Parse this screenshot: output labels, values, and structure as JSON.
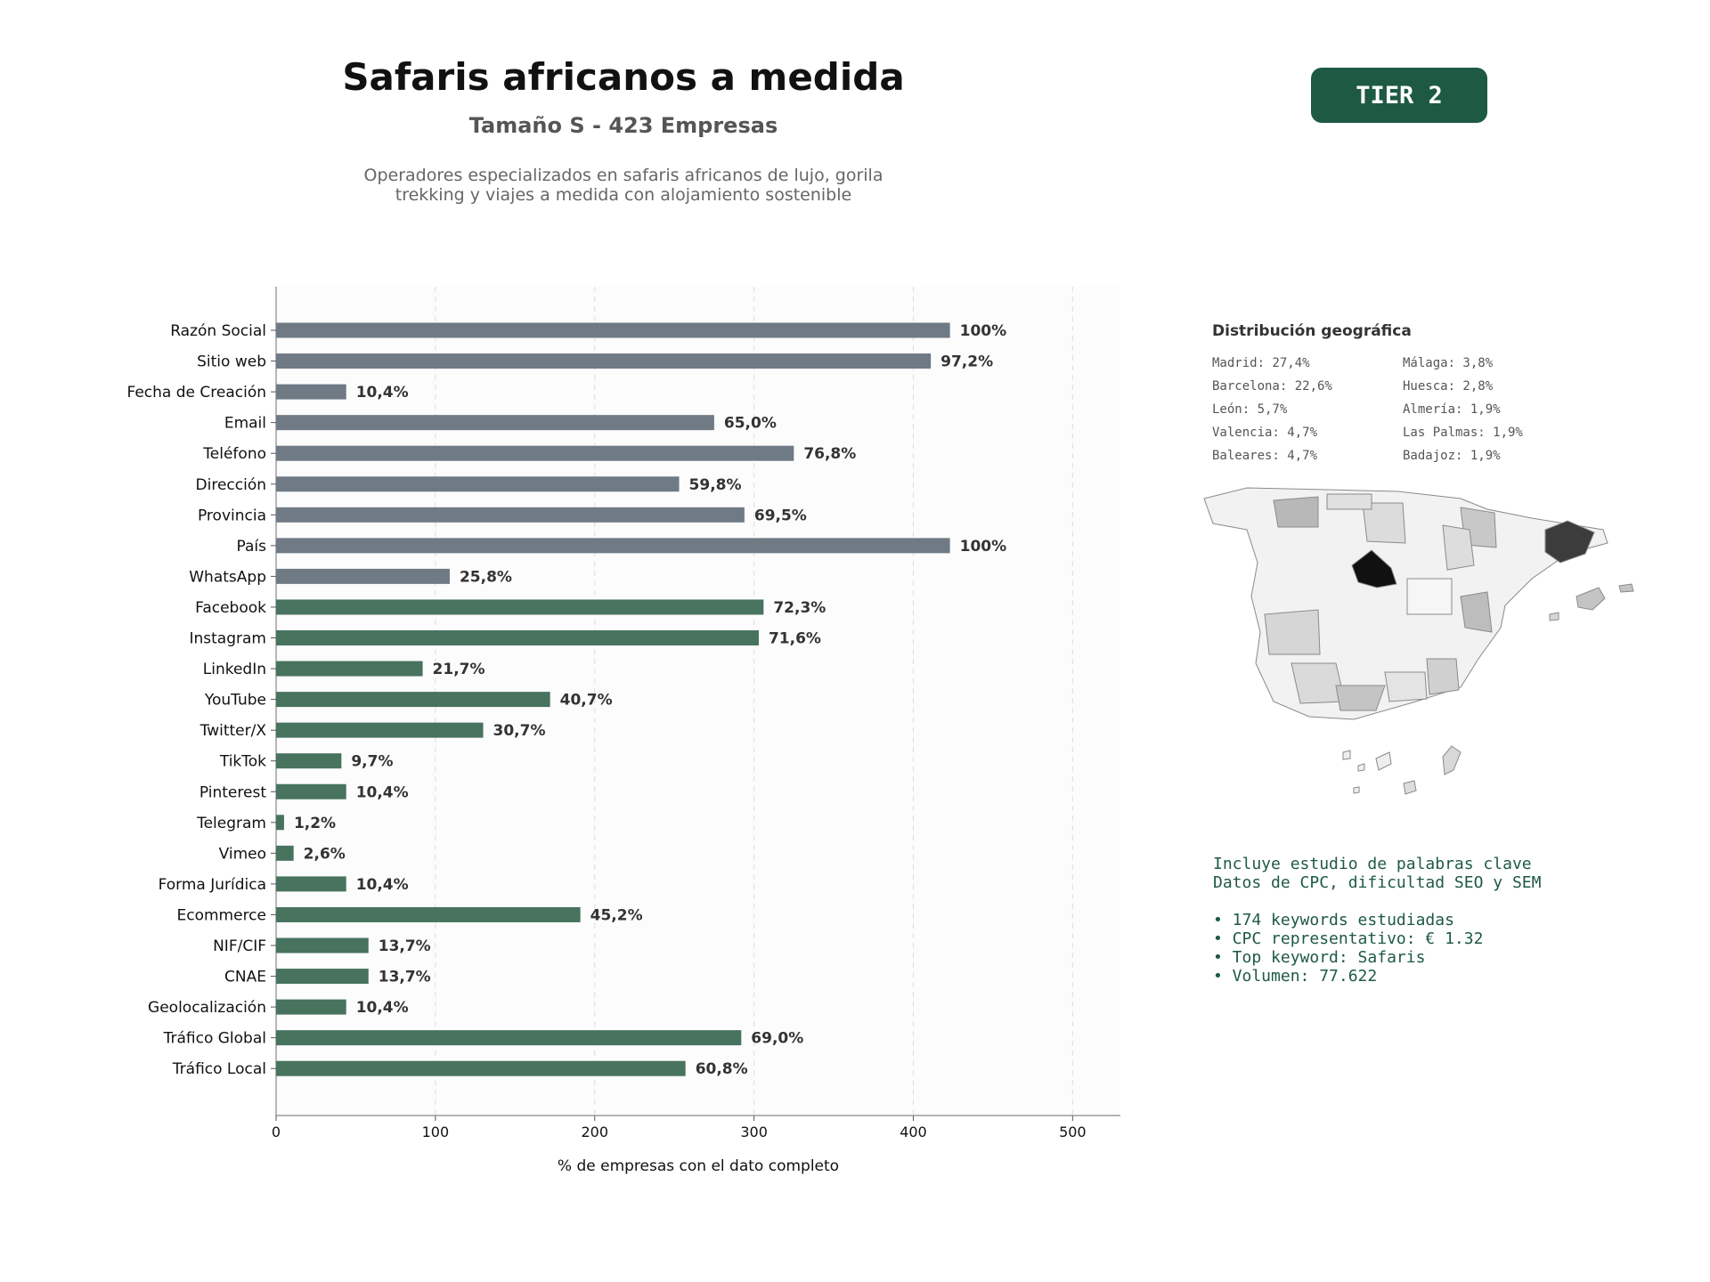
{
  "header": {
    "title": "Safaris africanos a medida",
    "subtitle": "Tamaño S - 423 Empresas",
    "description_line1": "Operadores especializados en safaris africanos de lujo, gorila",
    "description_line2": "trekking y viajes a medida con alojamiento sostenible",
    "tier_label": "TIER 2"
  },
  "colors": {
    "basic_bar": "#6f7a85",
    "social_bar": "#47735f",
    "tier_bg": "#1e5a43",
    "keyword_text": "#1e5a43"
  },
  "chart_data": {
    "type": "bar",
    "orientation": "horizontal",
    "xlabel": "% de empresas con el dato completo",
    "xlim": [
      0,
      530
    ],
    "xticks": [
      0,
      100,
      200,
      300,
      400,
      500
    ],
    "grid": true,
    "categories": [
      "Razón Social",
      "Sitio web",
      "Fecha de Creación",
      "Email",
      "Teléfono",
      "Dirección",
      "Provincia",
      "País",
      "WhatsApp",
      "Facebook",
      "Instagram",
      "LinkedIn",
      "YouTube",
      "Twitter/X",
      "TikTok",
      "Pinterest",
      "Telegram",
      "Vimeo",
      "Forma Jurídica",
      "Ecommerce",
      "NIF/CIF",
      "CNAE",
      "Geolocalización",
      "Tráfico Global",
      "Tráfico Local"
    ],
    "values": [
      423,
      411,
      44,
      275,
      325,
      253,
      294,
      423,
      109,
      306,
      303,
      92,
      172,
      130,
      41,
      44,
      5,
      11,
      44,
      191,
      58,
      58,
      44,
      292,
      257
    ],
    "labels": [
      "100%",
      "97,2%",
      "10,4%",
      "65,0%",
      "76,8%",
      "59,8%",
      "69,5%",
      "100%",
      "25,8%",
      "72,3%",
      "71,6%",
      "21,7%",
      "40,7%",
      "30,7%",
      "9,7%",
      "10,4%",
      "1,2%",
      "2,6%",
      "10,4%",
      "45,2%",
      "13,7%",
      "13,7%",
      "10,4%",
      "69,0%",
      "60,8%"
    ],
    "groups": [
      "basic",
      "basic",
      "basic",
      "basic",
      "basic",
      "basic",
      "basic",
      "basic",
      "basic",
      "social",
      "social",
      "social",
      "social",
      "social",
      "social",
      "social",
      "social",
      "social",
      "social",
      "social",
      "social",
      "social",
      "social",
      "social",
      "social"
    ]
  },
  "geo": {
    "title": "Distribución geográfica",
    "col1": [
      "Madrid: 27,4%",
      "Barcelona: 22,6%",
      "León: 5,7%",
      "Valencia: 4,7%",
      "Baleares: 4,7%"
    ],
    "col2": [
      "Málaga: 3,8%",
      "Huesca: 2,8%",
      "Almería: 1,9%",
      "Las Palmas: 1,9%",
      "Badajoz: 1,9%"
    ]
  },
  "keywords": {
    "line1": "Incluye estudio de palabras clave",
    "line2": "Datos de CPC, dificultad SEO y SEM",
    "bullets": [
      "• 174 keywords estudiadas",
      "• CPC representativo: € 1.32",
      "• Top keyword: Safaris",
      "• Volumen: 77.622"
    ]
  }
}
